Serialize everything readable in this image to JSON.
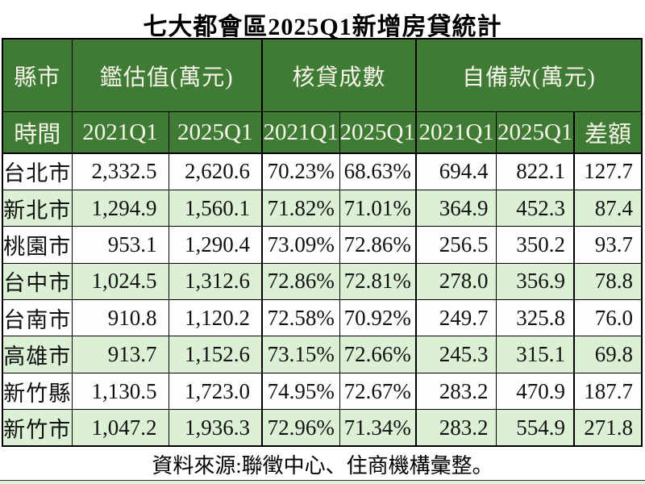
{
  "title": "七大都會區2025Q1新增房貸統計",
  "colors": {
    "header_green": "#407b36",
    "alt_row_green": "#dcf0d5",
    "header_text": "#f6f3e9",
    "border": "#000000"
  },
  "chart_data": {
    "type": "table",
    "title": "七大都會區2025Q1新增房貸統計",
    "column_groups": [
      "縣市",
      "鑑估值(萬元)",
      "核貸成數",
      "自備款(萬元)"
    ],
    "sub_headers": [
      "時間",
      "2021Q1",
      "2025Q1",
      "2021Q1",
      "2025Q1",
      "2021Q1",
      "2025Q1",
      "差額"
    ],
    "rows": [
      {
        "city": "台北市",
        "values": [
          "2,332.5",
          "2,620.6",
          "70.23%",
          "68.63%",
          "694.4",
          "822.1",
          "127.7"
        ]
      },
      {
        "city": "新北市",
        "values": [
          "1,294.9",
          "1,560.1",
          "71.82%",
          "71.01%",
          "364.9",
          "452.3",
          "87.4"
        ]
      },
      {
        "city": "桃園市",
        "values": [
          "953.1",
          "1,290.4",
          "73.09%",
          "72.86%",
          "256.5",
          "350.2",
          "93.7"
        ]
      },
      {
        "city": "台中市",
        "values": [
          "1,024.5",
          "1,312.6",
          "72.86%",
          "72.81%",
          "278.0",
          "356.9",
          "78.8"
        ]
      },
      {
        "city": "台南市",
        "values": [
          "910.8",
          "1,120.2",
          "72.58%",
          "70.92%",
          "249.7",
          "325.8",
          "76.0"
        ]
      },
      {
        "city": "高雄市",
        "values": [
          "913.7",
          "1,152.6",
          "73.15%",
          "72.66%",
          "245.3",
          "315.1",
          "69.8"
        ]
      },
      {
        "city": "新竹縣",
        "values": [
          "1,130.5",
          "1,723.0",
          "74.95%",
          "72.67%",
          "283.2",
          "470.9",
          "187.7"
        ]
      },
      {
        "city": "新竹市",
        "values": [
          "1,047.2",
          "1,936.3",
          "72.96%",
          "71.34%",
          "283.2",
          "554.9",
          "271.8"
        ]
      }
    ],
    "source_note": "資料來源:聯徵中心、住商機構彙整。"
  }
}
